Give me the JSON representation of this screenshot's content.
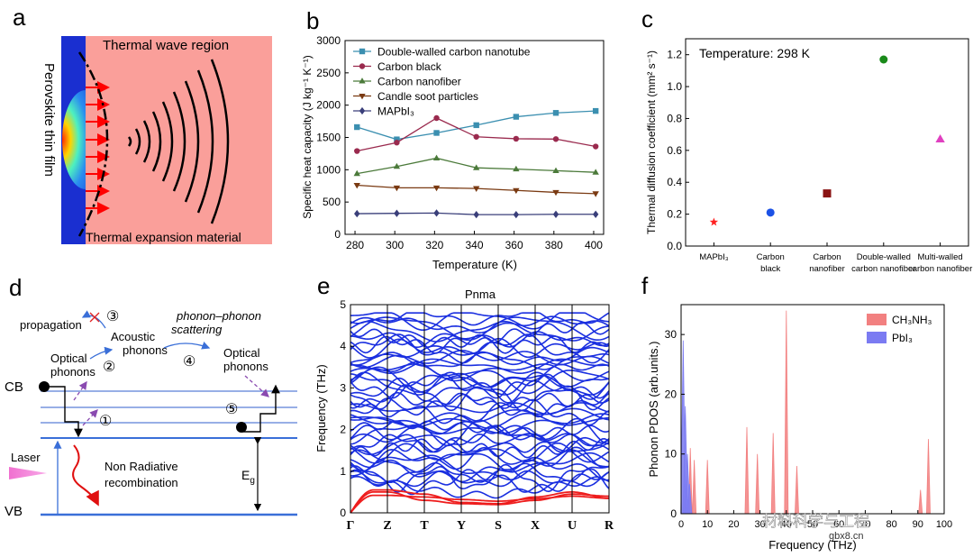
{
  "panel_letters": {
    "a": "a",
    "b": "b",
    "c": "c",
    "d": "d",
    "e": "e",
    "f": "f"
  },
  "panel_a": {
    "top_label": "Thermal wave  region",
    "bottom_label": "Thermal expansion material",
    "side_label": "Perovskite thin film",
    "colors": {
      "background": "#fa9f9a",
      "film": "#1a2fd0",
      "arrow": "#ff0000"
    }
  },
  "chart_data": [
    {
      "id": "b",
      "type": "line",
      "xlabel": "Temperature (K)",
      "ylabel": "Specific heat capacity (J kg⁻¹ K⁻¹)",
      "xlim": [
        275,
        405
      ],
      "ylim": [
        0,
        3000
      ],
      "xticks": [
        "280",
        "300",
        "320",
        "340",
        "360",
        "380",
        "400"
      ],
      "yticks": [
        "0",
        "500",
        "1000",
        "1500",
        "2000",
        "2500",
        "3000"
      ],
      "x": [
        281,
        301,
        321,
        341,
        361,
        381,
        401
      ],
      "legend_position": "top-left",
      "series": [
        {
          "name": "Double-walled carbon nanotube",
          "color": "#3b8fb0",
          "marker": "square",
          "values": [
            1660,
            1470,
            1570,
            1690,
            1820,
            1880,
            1910
          ]
        },
        {
          "name": "Carbon black",
          "color": "#9a2a4e",
          "marker": "circle",
          "values": [
            1290,
            1420,
            1800,
            1510,
            1480,
            1475,
            1360
          ]
        },
        {
          "name": "Carbon nanofiber",
          "color": "#4b7a3a",
          "marker": "triangle-up",
          "values": [
            940,
            1050,
            1180,
            1030,
            1010,
            985,
            960
          ]
        },
        {
          "name": "Candle soot particles",
          "color": "#7a3a12",
          "marker": "triangle-down",
          "values": [
            760,
            720,
            720,
            710,
            680,
            650,
            630
          ]
        },
        {
          "name": "MAPbI₃",
          "color": "#3a3f7a",
          "marker": "diamond",
          "values": [
            320,
            325,
            330,
            305,
            305,
            310,
            310
          ]
        }
      ]
    },
    {
      "id": "c",
      "type": "scatter",
      "ylabel": "Thermal diffusion coefficient (mm² s⁻¹)",
      "ylim": [
        0,
        1.3
      ],
      "yticks": [
        "0.0",
        "0.2",
        "0.4",
        "0.6",
        "0.8",
        "1.0",
        "1.2"
      ],
      "annotation": "Temperature: 298 K",
      "categories": [
        [
          "MAPbI₃"
        ],
        [
          "Carbon",
          "black"
        ],
        [
          "Carbon",
          "nanofiber"
        ],
        [
          "Double-walled",
          "carbon nanofiber"
        ],
        [
          "Multi-walled",
          "carbon nanofiber"
        ]
      ],
      "points": [
        {
          "value": 0.15,
          "color": "#ff2020",
          "marker": "star"
        },
        {
          "value": 0.21,
          "color": "#1c52e6",
          "marker": "circle"
        },
        {
          "value": 0.33,
          "color": "#8a1313",
          "marker": "square"
        },
        {
          "value": 1.17,
          "color": "#1a8a1a",
          "marker": "circle"
        },
        {
          "value": 0.67,
          "color": "#e040c0",
          "marker": "triangle-up"
        }
      ]
    },
    {
      "id": "e",
      "type": "line",
      "title": "Pnma",
      "ylabel": "Frequency (THz)",
      "ylim": [
        0,
        5
      ],
      "yticks": [
        "0",
        "1",
        "2",
        "3",
        "4",
        "5"
      ],
      "k_points": [
        "Γ",
        "Z",
        "T",
        "Y",
        "S",
        "X",
        "U",
        "R"
      ],
      "band_color": "#1a2fe0",
      "acoustic_color": "#ee1c1c"
    },
    {
      "id": "f",
      "type": "area",
      "xlabel": "Frequency (THz)",
      "ylabel": "Phonon PDOS (arb.units.)",
      "xlim": [
        0,
        100
      ],
      "ylim": [
        0,
        35
      ],
      "xticks": [
        "0",
        "10",
        "20",
        "30",
        "40",
        "50",
        "60",
        "70",
        "80",
        "90",
        "100"
      ],
      "yticks": [
        "0",
        "10",
        "20",
        "30"
      ],
      "legend_position": "top-right",
      "series": [
        {
          "name": "CH₃NH₃",
          "color": "#f28080",
          "peaks": [
            [
              1.5,
              3
            ],
            [
              3.5,
              11
            ],
            [
              5,
              9
            ],
            [
              10,
              9
            ],
            [
              25,
              14.5
            ],
            [
              29,
              10
            ],
            [
              35,
              13.5
            ],
            [
              40,
              34
            ],
            [
              44,
              8
            ],
            [
              91,
              4
            ],
            [
              94,
              12.5
            ]
          ]
        },
        {
          "name": "PbI₃",
          "color": "#7b7bf2",
          "peaks": [
            [
              0.8,
              29
            ],
            [
              1.6,
              18
            ],
            [
              2.4,
              10
            ],
            [
              3.2,
              5
            ]
          ]
        }
      ],
      "watermark": "材料科学与工程",
      "watermark_sub": "gbx8.cn"
    }
  ],
  "panel_d": {
    "propagation": "propagation",
    "acoustic": [
      "Acoustic",
      "phonons"
    ],
    "optical_left": [
      "Optical",
      "phonons"
    ],
    "phonon_scattering": [
      "phonon–phonon",
      "scattering"
    ],
    "optical_right": [
      "Optical",
      "phonons"
    ],
    "cb": "CB",
    "vb": "VB",
    "laser": "Laser",
    "non_radiative": [
      "Non Radiative",
      "recombination"
    ],
    "eg": "E",
    "eg_sub": "g",
    "steps": [
      "①",
      "②",
      "③",
      "④",
      "⑤"
    ]
  }
}
